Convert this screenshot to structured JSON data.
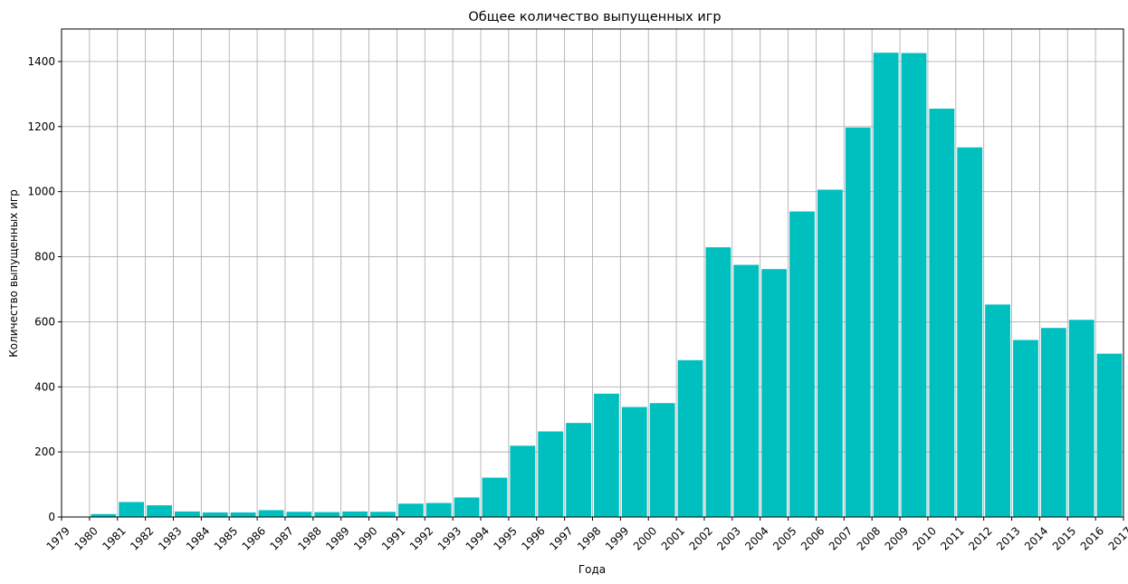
{
  "chart_data": {
    "type": "bar",
    "title": "Общее количество выпущенных игр",
    "xlabel": "Года",
    "ylabel": "Количество выпущенных игр",
    "bar_color": "#00bfbf",
    "grid": true,
    "xlim": [
      1979,
      2017
    ],
    "ylim": [
      0,
      1500
    ],
    "x_ticks": [
      1979,
      1980,
      1981,
      1982,
      1983,
      1984,
      1985,
      1986,
      1987,
      1988,
      1989,
      1990,
      1991,
      1992,
      1993,
      1994,
      1995,
      1996,
      1997,
      1998,
      1999,
      2000,
      2001,
      2002,
      2003,
      2004,
      2005,
      2006,
      2007,
      2008,
      2009,
      2010,
      2011,
      2012,
      2013,
      2014,
      2015,
      2016,
      2017
    ],
    "y_ticks": [
      0,
      200,
      400,
      600,
      800,
      1000,
      1200,
      1400
    ],
    "bins": [
      {
        "start": 1980,
        "end": 1981,
        "value": 9
      },
      {
        "start": 1981,
        "end": 1982,
        "value": 46
      },
      {
        "start": 1982,
        "end": 1983,
        "value": 36
      },
      {
        "start": 1983,
        "end": 1984,
        "value": 17
      },
      {
        "start": 1984,
        "end": 1985,
        "value": 14
      },
      {
        "start": 1985,
        "end": 1986,
        "value": 14
      },
      {
        "start": 1986,
        "end": 1987,
        "value": 21
      },
      {
        "start": 1987,
        "end": 1988,
        "value": 16
      },
      {
        "start": 1988,
        "end": 1989,
        "value": 15
      },
      {
        "start": 1989,
        "end": 1990,
        "value": 17
      },
      {
        "start": 1990,
        "end": 1991,
        "value": 16
      },
      {
        "start": 1991,
        "end": 1992,
        "value": 41
      },
      {
        "start": 1992,
        "end": 1993,
        "value": 43
      },
      {
        "start": 1993,
        "end": 1994,
        "value": 60
      },
      {
        "start": 1994,
        "end": 1995,
        "value": 121
      },
      {
        "start": 1995,
        "end": 1996,
        "value": 219
      },
      {
        "start": 1996,
        "end": 1997,
        "value": 263
      },
      {
        "start": 1997,
        "end": 1998,
        "value": 289
      },
      {
        "start": 1998,
        "end": 1999,
        "value": 379
      },
      {
        "start": 1999,
        "end": 2000,
        "value": 338
      },
      {
        "start": 2000,
        "end": 2001,
        "value": 350
      },
      {
        "start": 2001,
        "end": 2002,
        "value": 482
      },
      {
        "start": 2002,
        "end": 2003,
        "value": 829
      },
      {
        "start": 2003,
        "end": 2004,
        "value": 775
      },
      {
        "start": 2004,
        "end": 2005,
        "value": 762
      },
      {
        "start": 2005,
        "end": 2006,
        "value": 939
      },
      {
        "start": 2006,
        "end": 2007,
        "value": 1006
      },
      {
        "start": 2007,
        "end": 2008,
        "value": 1197
      },
      {
        "start": 2008,
        "end": 2009,
        "value": 1427
      },
      {
        "start": 2009,
        "end": 2010,
        "value": 1426
      },
      {
        "start": 2010,
        "end": 2011,
        "value": 1255
      },
      {
        "start": 2011,
        "end": 2012,
        "value": 1136
      },
      {
        "start": 2012,
        "end": 2013,
        "value": 653
      },
      {
        "start": 2013,
        "end": 2014,
        "value": 544
      },
      {
        "start": 2014,
        "end": 2015,
        "value": 581
      },
      {
        "start": 2015,
        "end": 2016,
        "value": 606
      },
      {
        "start": 2016,
        "end": 2017,
        "value": 502
      }
    ]
  }
}
